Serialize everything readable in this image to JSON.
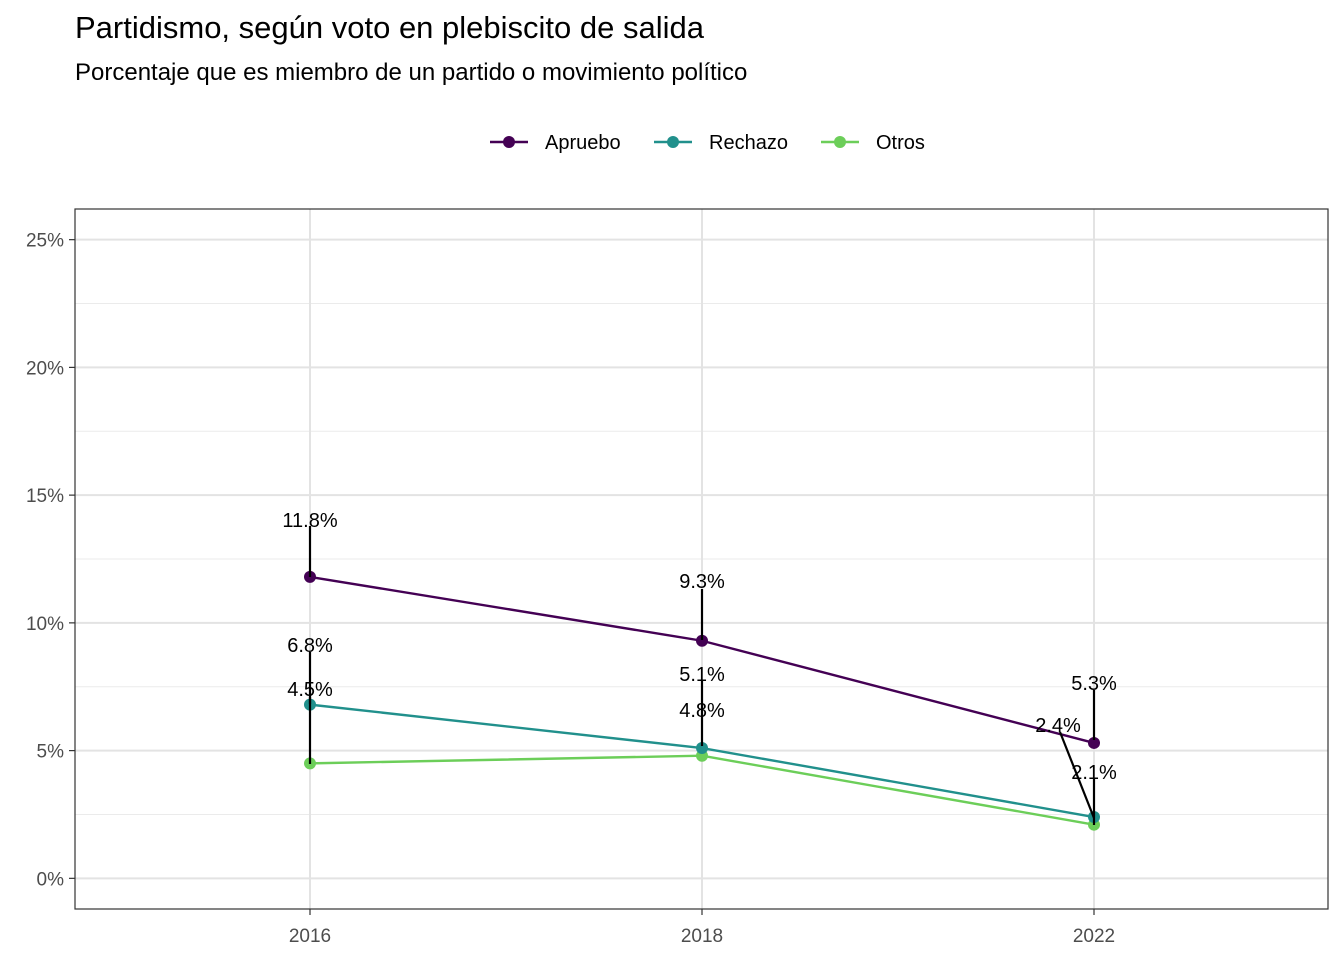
{
  "chart_data": {
    "type": "line",
    "title": "Partidismo, según voto en plebiscito de salida",
    "subtitle": "Porcentaje que es miembro de un partido o movimiento político",
    "xlabel": "",
    "ylabel": "",
    "categories": [
      "2016",
      "2018",
      "2022"
    ],
    "ylim": [
      -1.2,
      26.2
    ],
    "y_ticks": [
      0,
      5,
      10,
      15,
      20,
      25
    ],
    "y_tick_labels": [
      "0%",
      "5%",
      "10%",
      "15%",
      "20%",
      "25%"
    ],
    "grid": true,
    "legend_position": "top",
    "series": [
      {
        "name": "Apruebo",
        "color": "#440154",
        "values": [
          11.8,
          9.3,
          5.3
        ],
        "labels": [
          "11.8%",
          "9.3%",
          "5.3%"
        ]
      },
      {
        "name": "Rechazo",
        "color": "#21908C",
        "values": [
          6.8,
          5.1,
          2.4
        ],
        "labels": [
          "6.8%",
          "5.1%",
          "2.4%"
        ]
      },
      {
        "name": "Otros",
        "color": "#6CCE59",
        "values": [
          4.5,
          4.8,
          2.1
        ],
        "labels": [
          "4.5%",
          "4.8%",
          "2.1%"
        ]
      }
    ]
  }
}
